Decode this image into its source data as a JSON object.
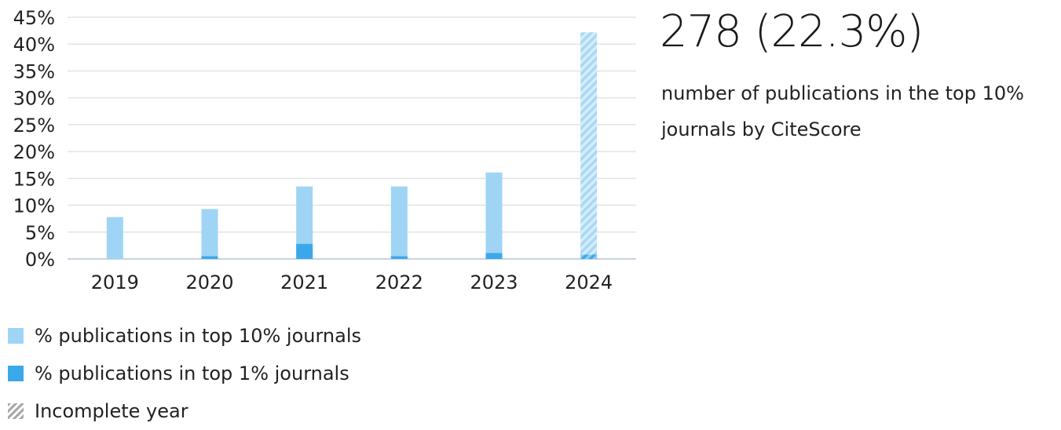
{
  "chart_data": {
    "type": "bar",
    "categories": [
      "2019",
      "2020",
      "2021",
      "2022",
      "2023",
      "2024"
    ],
    "series": [
      {
        "name": "% publications in top 10% journals",
        "values": [
          7.8,
          9.3,
          13.5,
          13.5,
          16.1,
          42.2
        ],
        "color": "#9fd4f5"
      },
      {
        "name": "% publications in top 1% journals",
        "values": [
          0.0,
          0.5,
          2.8,
          0.5,
          1.1,
          0.8
        ],
        "color": "#3ba8ec"
      }
    ],
    "incomplete_categories": [
      "2024"
    ],
    "ylim": [
      0,
      45
    ],
    "yticks": [
      "0%",
      "5%",
      "10%",
      "15%",
      "20%",
      "25%",
      "30%",
      "35%",
      "40%",
      "45%"
    ],
    "grid": true,
    "legend_placement": "bottom-left",
    "legend": [
      {
        "label": "% publications in top 10% journals",
        "style": "solid-light"
      },
      {
        "label": "% publications in top 1% journals",
        "style": "solid-dark"
      },
      {
        "label": "Incomplete year",
        "style": "hatched"
      }
    ]
  },
  "summary": {
    "headline": "278 (22.3%)",
    "description": "number of publications in the top 10% journals by CiteScore"
  }
}
